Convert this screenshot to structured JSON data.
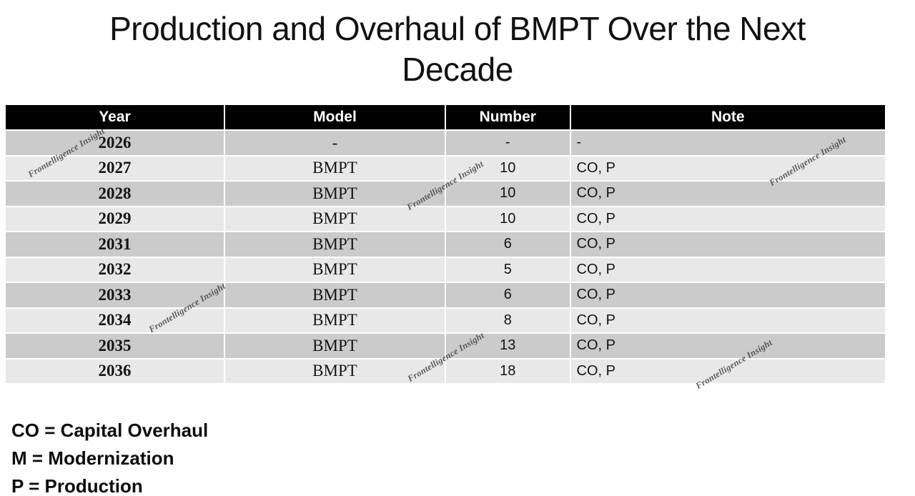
{
  "title": "Production and Overhaul of BMPT Over the Next Decade",
  "table": {
    "columns": [
      "Year",
      "Model",
      "Number",
      "Note"
    ],
    "rows": [
      {
        "year": "2026",
        "model": "-",
        "number": "-",
        "note": "-"
      },
      {
        "year": "2027",
        "model": "BMPT",
        "number": "10",
        "note": "CO, P"
      },
      {
        "year": "2028",
        "model": "BMPT",
        "number": "10",
        "note": "CO, P"
      },
      {
        "year": "2029",
        "model": "BMPT",
        "number": "10",
        "note": "CO, P"
      },
      {
        "year": "2031",
        "model": "BMPT",
        "number": "6",
        "note": "CO, P"
      },
      {
        "year": "2032",
        "model": "BMPT",
        "number": "5",
        "note": "CO, P"
      },
      {
        "year": "2033",
        "model": "BMPT",
        "number": "6",
        "note": "CO, P"
      },
      {
        "year": "2034",
        "model": "BMPT",
        "number": "8",
        "note": "CO, P"
      },
      {
        "year": "2035",
        "model": "BMPT",
        "number": "13",
        "note": "CO, P"
      },
      {
        "year": "2036",
        "model": "BMPT",
        "number": "18",
        "note": "CO, P"
      }
    ]
  },
  "legend": {
    "lines": [
      "CO = Capital Overhaul",
      "M = Modernization",
      "P = Production"
    ]
  },
  "watermark": {
    "text": "Frontelligence Insight"
  },
  "colors": {
    "header_bg": "#010101",
    "header_text": "#ffffff",
    "row_dark": "#cbcbcb",
    "row_light": "#e8e8e8",
    "watermark": "#3d3d3d",
    "title_text": "#111111"
  },
  "chart_data": {
    "type": "table",
    "title": "Production and Overhaul of BMPT Over the Next Decade",
    "categories": [
      "2026",
      "2027",
      "2028",
      "2029",
      "2031",
      "2032",
      "2033",
      "2034",
      "2035",
      "2036"
    ],
    "series": [
      {
        "name": "Number",
        "values": [
          null,
          10,
          10,
          10,
          6,
          5,
          6,
          8,
          13,
          18
        ]
      }
    ],
    "notes": [
      "-",
      "CO, P",
      "CO, P",
      "CO, P",
      "CO, P",
      "CO, P",
      "CO, P",
      "CO, P",
      "CO, P",
      "CO, P"
    ]
  }
}
